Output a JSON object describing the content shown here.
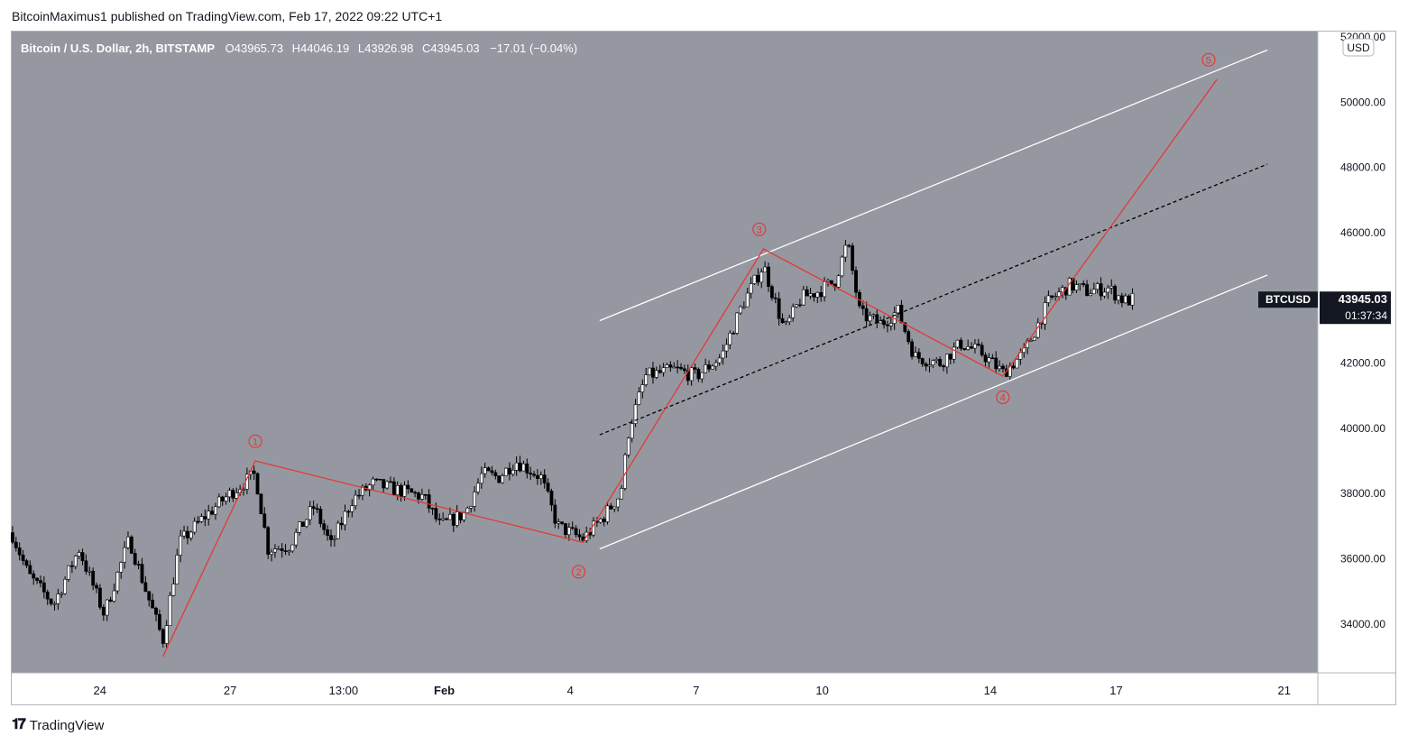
{
  "header": {
    "publish_line": "BitcoinMaximus1 published on TradingView.com, Feb 17, 2022 09:22 UTC+1"
  },
  "footer": {
    "brand": "TradingView",
    "logo_icon": "tradingview-logo-icon"
  },
  "colors": {
    "plot_bg": "#9598a1",
    "up": "#ffffff",
    "down": "#000000",
    "wave": "#e53935",
    "channel": "#ffffff",
    "midline": "#000000",
    "price_tag": "#131722"
  },
  "chart_data": {
    "type": "candlestick",
    "symbol_line": {
      "name": "Bitcoin / U.S. Dollar, 2h, BITSTAMP",
      "o_label": "O",
      "o": "43965.73",
      "h_label": "H",
      "h": "44046.19",
      "l_label": "L",
      "l": "43926.98",
      "c_label": "C",
      "c": "43945.03",
      "change": "−17.01 (−0.04%)"
    },
    "currency": "USD",
    "ticker": "BTCUSD",
    "last_price": "43945.03",
    "countdown": "01:37:34",
    "ylim": [
      32500,
      52000
    ],
    "y_ticks": [
      "52000.00",
      "50000.00",
      "48000.00",
      "46000.00",
      "42000.00",
      "40000.00",
      "38000.00",
      "36000.00",
      "34000.00"
    ],
    "x_ticks": [
      {
        "label": "24",
        "t": 0.5
      },
      {
        "label": "27",
        "t": 3.6
      },
      {
        "label": "13:00",
        "t": 6.3
      },
      {
        "label": "Feb",
        "t": 8.7
      },
      {
        "label": "4",
        "t": 11.7
      },
      {
        "label": "7",
        "t": 14.7
      },
      {
        "label": "10",
        "t": 17.7
      },
      {
        "label": "14",
        "t": 21.7
      },
      {
        "label": "17",
        "t": 24.7
      },
      {
        "label": "21",
        "t": 28.7
      }
    ],
    "xlim": [
      -1.6,
      29.5
    ],
    "wave_labels": [
      "1",
      "2",
      "3",
      "4",
      "5"
    ],
    "wave_points": [
      {
        "t": 2.0,
        "v": 33000
      },
      {
        "t": 4.2,
        "v": 39000
      },
      {
        "t": 12.0,
        "v": 36500
      },
      {
        "t": 16.3,
        "v": 45500
      },
      {
        "t": 22.0,
        "v": 41600
      },
      {
        "t": 27.1,
        "v": 50700
      }
    ],
    "wave_label_pos": [
      {
        "t": 4.2,
        "v": 39600
      },
      {
        "t": 11.9,
        "v": 35600
      },
      {
        "t": 16.2,
        "v": 46100
      },
      {
        "t": 22.0,
        "v": 40950
      },
      {
        "t": 26.9,
        "v": 51300
      }
    ],
    "channel_upper": [
      {
        "t": 12.4,
        "v": 43300
      },
      {
        "t": 28.3,
        "v": 51600
      }
    ],
    "channel_lower": [
      {
        "t": 12.4,
        "v": 36300
      },
      {
        "t": 28.3,
        "v": 44700
      }
    ],
    "channel_mid": [
      {
        "t": 12.4,
        "v": 39800
      },
      {
        "t": 28.3,
        "v": 48100
      }
    ],
    "price_anchors": [
      [
        -1.6,
        36800
      ],
      [
        -1.2,
        35500
      ],
      [
        -0.6,
        34600
      ],
      [
        0.0,
        36300
      ],
      [
        0.6,
        34300
      ],
      [
        1.2,
        36600
      ],
      [
        1.6,
        35000
      ],
      [
        2.0,
        33500
      ],
      [
        2.4,
        36500
      ],
      [
        3.0,
        37300
      ],
      [
        3.6,
        38000
      ],
      [
        4.2,
        38600
      ],
      [
        4.5,
        36300
      ],
      [
        5.0,
        36400
      ],
      [
        5.6,
        37600
      ],
      [
        6.0,
        36400
      ],
      [
        6.5,
        37800
      ],
      [
        7.0,
        38300
      ],
      [
        7.6,
        38100
      ],
      [
        8.2,
        37900
      ],
      [
        8.6,
        37000
      ],
      [
        9.2,
        37400
      ],
      [
        9.6,
        38600
      ],
      [
        10.0,
        38500
      ],
      [
        10.4,
        39000
      ],
      [
        11.0,
        38500
      ],
      [
        11.4,
        37000
      ],
      [
        12.0,
        36600
      ],
      [
        12.5,
        37300
      ],
      [
        12.9,
        38000
      ],
      [
        13.1,
        40000
      ],
      [
        13.5,
        41600
      ],
      [
        14.2,
        41800
      ],
      [
        14.7,
        41600
      ],
      [
        15.3,
        42200
      ],
      [
        15.8,
        43800
      ],
      [
        16.3,
        45000
      ],
      [
        16.8,
        43000
      ],
      [
        17.2,
        44000
      ],
      [
        17.6,
        44200
      ],
      [
        18.0,
        44500
      ],
      [
        18.3,
        45700
      ],
      [
        18.6,
        43500
      ],
      [
        19.1,
        43200
      ],
      [
        19.5,
        43600
      ],
      [
        19.9,
        42200
      ],
      [
        20.5,
        42000
      ],
      [
        21.0,
        42600
      ],
      [
        21.5,
        42300
      ],
      [
        22.0,
        41700
      ],
      [
        22.5,
        42300
      ],
      [
        23.1,
        43900
      ],
      [
        23.6,
        44400
      ],
      [
        24.0,
        44200
      ],
      [
        24.5,
        44300
      ],
      [
        24.9,
        43900
      ],
      [
        25.1,
        43950
      ]
    ]
  }
}
